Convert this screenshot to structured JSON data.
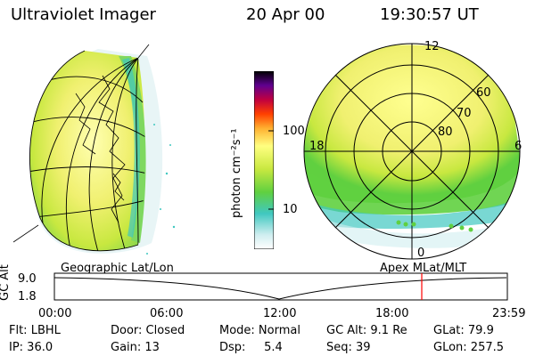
{
  "header": {
    "instrument": "Ultraviolet Imager",
    "date": "20 Apr 00",
    "time": "19:30:57 UT"
  },
  "colorbar": {
    "unit_label": "photon cm⁻²s⁻¹",
    "ticks": [
      "100",
      "10"
    ],
    "scale": "log"
  },
  "polar_plot": {
    "mlt_labels": [
      "12",
      "18",
      "6",
      "0"
    ],
    "lat_labels": [
      "60",
      "70",
      "80"
    ]
  },
  "timeline": {
    "left_title": "Geographic Lat/Lon",
    "right_title": "Apex MLat/MLT",
    "axis_title": "GC Alt",
    "y_ticks": [
      "9.0",
      "1.8"
    ],
    "x_ticks": [
      "00:00",
      "06:00",
      "12:00",
      "18:00",
      "23:59"
    ],
    "current_time_marker": "19:30:57"
  },
  "info": {
    "row1": {
      "flt": "Flt: LBHL",
      "door": "Door: Closed",
      "mode": "Mode: Normal",
      "gcalt": "GC Alt: 9.1 Re",
      "glat": "GLat:  79.9"
    },
    "row2": {
      "ip": "IP: 36.0",
      "gain": "Gain: 13",
      "dsp": "Dsp:     5.4",
      "seq": "Seq: 39",
      "glon": "GLon: 257.5"
    }
  },
  "colors": {
    "red_marker": "#ff0000",
    "aurora_main": "#e8f060",
    "aurora_green": "#60d040"
  }
}
